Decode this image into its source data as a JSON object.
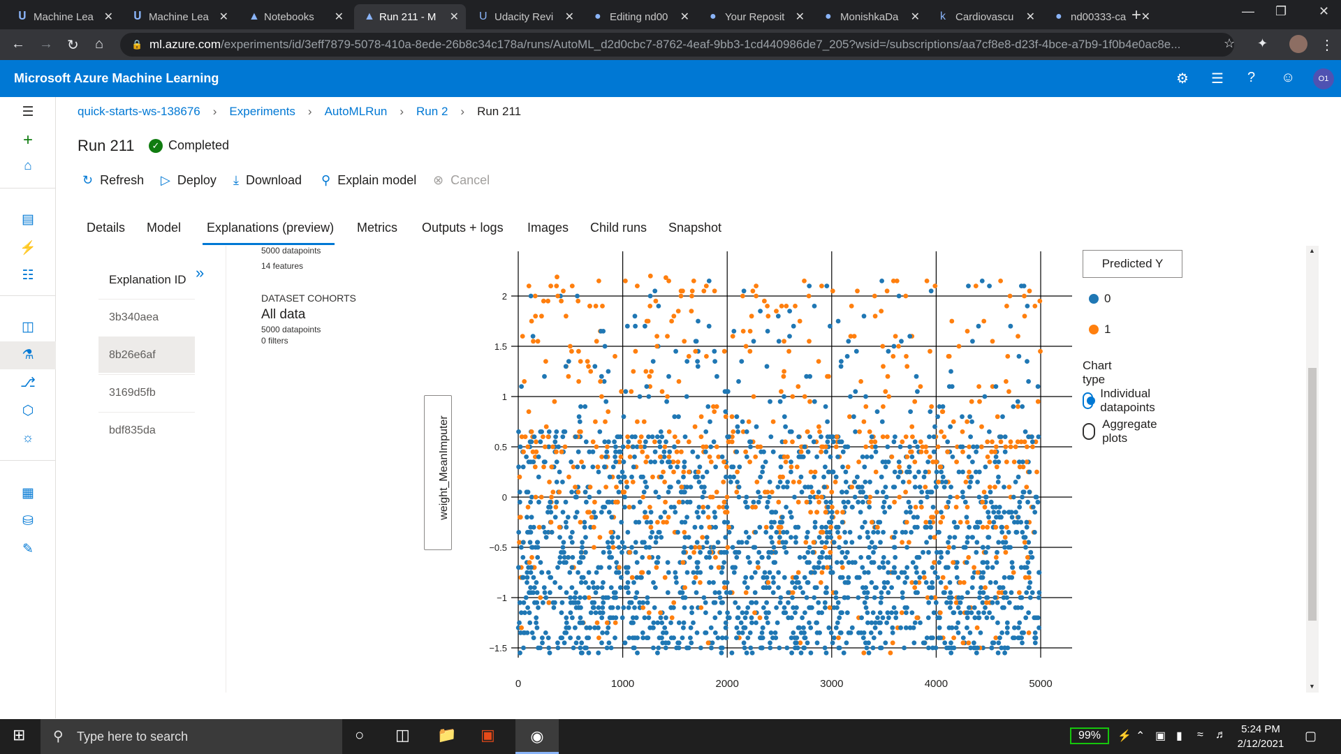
{
  "browser": {
    "tabs": [
      {
        "title": "Machine Lea",
        "icon": "azure-ml-icon",
        "active": false
      },
      {
        "title": "Machine Lea",
        "icon": "azure-ml-icon",
        "active": false
      },
      {
        "title": "Notebooks",
        "icon": "azure-icon",
        "active": false
      },
      {
        "title": "Run 211 - M",
        "icon": "azure-icon",
        "active": true
      },
      {
        "title": "Udacity Revi",
        "icon": "udacity-icon",
        "active": false
      },
      {
        "title": "Editing nd00",
        "icon": "github-icon",
        "active": false
      },
      {
        "title": "Your Reposit",
        "icon": "github-icon",
        "active": false
      },
      {
        "title": "MonishkaDa",
        "icon": "github-icon",
        "active": false
      },
      {
        "title": "Cardiovascu",
        "icon": "kaggle-icon",
        "active": false
      },
      {
        "title": "nd00333-ca",
        "icon": "github-icon",
        "active": false
      }
    ],
    "url_host": "ml.azure.com",
    "url_path": "/experiments/id/3eff7879-5078-410a-8ede-26b8c34c178a/runs/AutoML_d2d0cbc7-8762-4eaf-9bb3-1cd440986de7_205?wsid=/subscriptions/aa7cf8e8-d23f-4bce-a7b9-1f0b4e0ac8e..."
  },
  "app": {
    "title": "Microsoft Azure Machine Learning",
    "avatar_initials": "O1"
  },
  "breadcrumb": [
    "quick-starts-ws-138676",
    "Experiments",
    "AutoMLRun",
    "Run 2",
    "Run 211"
  ],
  "run": {
    "title": "Run 211",
    "status": "Completed"
  },
  "toolbar": {
    "refresh": "Refresh",
    "deploy": "Deploy",
    "download": "Download",
    "explain": "Explain model",
    "cancel": "Cancel"
  },
  "page_tabs": [
    "Details",
    "Model",
    "Explanations (preview)",
    "Metrics",
    "Outputs + logs",
    "Images",
    "Child runs",
    "Snapshot"
  ],
  "explanations": {
    "header": "Explanation ID",
    "ids": [
      "3b340aea",
      "8b26e6af",
      "3169d5fb",
      "bdf835da"
    ],
    "selected_index": 1
  },
  "dataset": {
    "datapoints_top": "5000 datapoints",
    "features": "14 features",
    "cohorts_header": "DATASET COHORTS",
    "cohort_name": "All data",
    "cohort_datapoints": "5000 datapoints",
    "cohort_filters": "0 filters"
  },
  "legend": {
    "button": "Predicted Y",
    "items": [
      {
        "label": "0",
        "color": "#1f77b4"
      },
      {
        "label": "1",
        "color": "#ff7f0e"
      }
    ],
    "chart_type_header": "Chart type",
    "chart_types": [
      "Individual datapoints",
      "Aggregate plots"
    ],
    "selected_chart_type": 0
  },
  "chart_data": {
    "type": "scatter",
    "ylabel": "weight_MeanImputer",
    "xlabel": "",
    "x_ticks": [
      "0",
      "1000",
      "2000",
      "3000",
      "4000",
      "5000"
    ],
    "y_ticks": [
      "2",
      "1.5",
      "1",
      "0.5",
      "0",
      "−0.5",
      "−1",
      "−1.5"
    ],
    "xlim": [
      0,
      5000
    ],
    "ylim": [
      -1.6,
      2.2
    ],
    "grid": true,
    "n_points": 5000,
    "series": [
      {
        "name": "0",
        "color": "#1f77b4"
      },
      {
        "name": "1",
        "color": "#ff7f0e"
      }
    ]
  },
  "taskbar": {
    "search_placeholder": "Type here to search",
    "battery": "99%",
    "time": "5:24 PM",
    "date": "2/12/2021"
  }
}
